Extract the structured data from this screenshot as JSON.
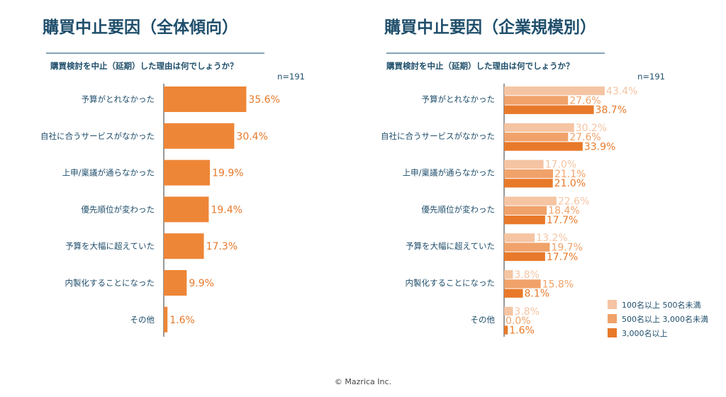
{
  "footer": "© Mazrica Inc.",
  "colors": {
    "title": "#1f4e6b",
    "rule": "#3d6d8c",
    "left_bar": "#ee8637",
    "left_label": "#e8792a",
    "series": [
      "#f5c4a3",
      "#f0a26a",
      "#e8792a"
    ]
  },
  "chart_data": [
    {
      "type": "bar",
      "orientation": "horizontal",
      "title": "購買中止要因（全体傾向）",
      "subtitle": "購買検討を中止（延期）した理由は何でしょうか？",
      "sample": "n=191",
      "categories": [
        "予算がとれなかった",
        "自社に合うサービスがなかった",
        "上申/稟議が通らなかった",
        "優先順位が変わった",
        "予算を大幅に超えていた",
        "内製化することになった",
        "その他"
      ],
      "values": [
        35.6,
        30.4,
        19.9,
        19.4,
        17.3,
        9.9,
        1.6
      ],
      "value_labels": [
        "35.6%",
        "30.4%",
        "19.9%",
        "19.4%",
        "17.3%",
        "9.9%",
        "1.6%"
      ],
      "xlim": [
        0,
        45
      ]
    },
    {
      "type": "bar",
      "orientation": "horizontal",
      "title": "購買中止要因（企業規模別）",
      "subtitle": "購買検討を中止（延期）した理由は何でしょうか？",
      "sample": "n=191",
      "categories": [
        "予算がとれなかった",
        "自社に合うサービスがなかった",
        "上申/稟議が通らなかった",
        "優先順位が変わった",
        "予算を大幅に超えていた",
        "内製化することになった",
        "その他"
      ],
      "series": [
        {
          "name": "100名以上 500名未満",
          "values": [
            43.4,
            30.2,
            17.0,
            22.6,
            13.2,
            3.8,
            3.8
          ],
          "value_labels": [
            "43.4%",
            "30.2%",
            "17.0%",
            "22.6%",
            "13.2%",
            "3.8%",
            "3.8%"
          ]
        },
        {
          "name": "500名以上 3,000名未満",
          "values": [
            27.6,
            27.6,
            21.1,
            18.4,
            19.7,
            15.8,
            0.0
          ],
          "value_labels": [
            "27.6%",
            "27.6%",
            "21.1%",
            "18.4%",
            "19.7%",
            "15.8%",
            "0.0%"
          ]
        },
        {
          "name": "3,000名以上",
          "values": [
            38.7,
            33.9,
            21.0,
            17.7,
            17.7,
            8.1,
            1.6
          ],
          "value_labels": [
            "38.7%",
            "33.9%",
            "21.0%",
            "17.7%",
            "17.7%",
            "8.1%",
            "1.6%"
          ]
        }
      ],
      "legend": "bottom-right",
      "xlim": [
        0,
        45
      ]
    }
  ]
}
